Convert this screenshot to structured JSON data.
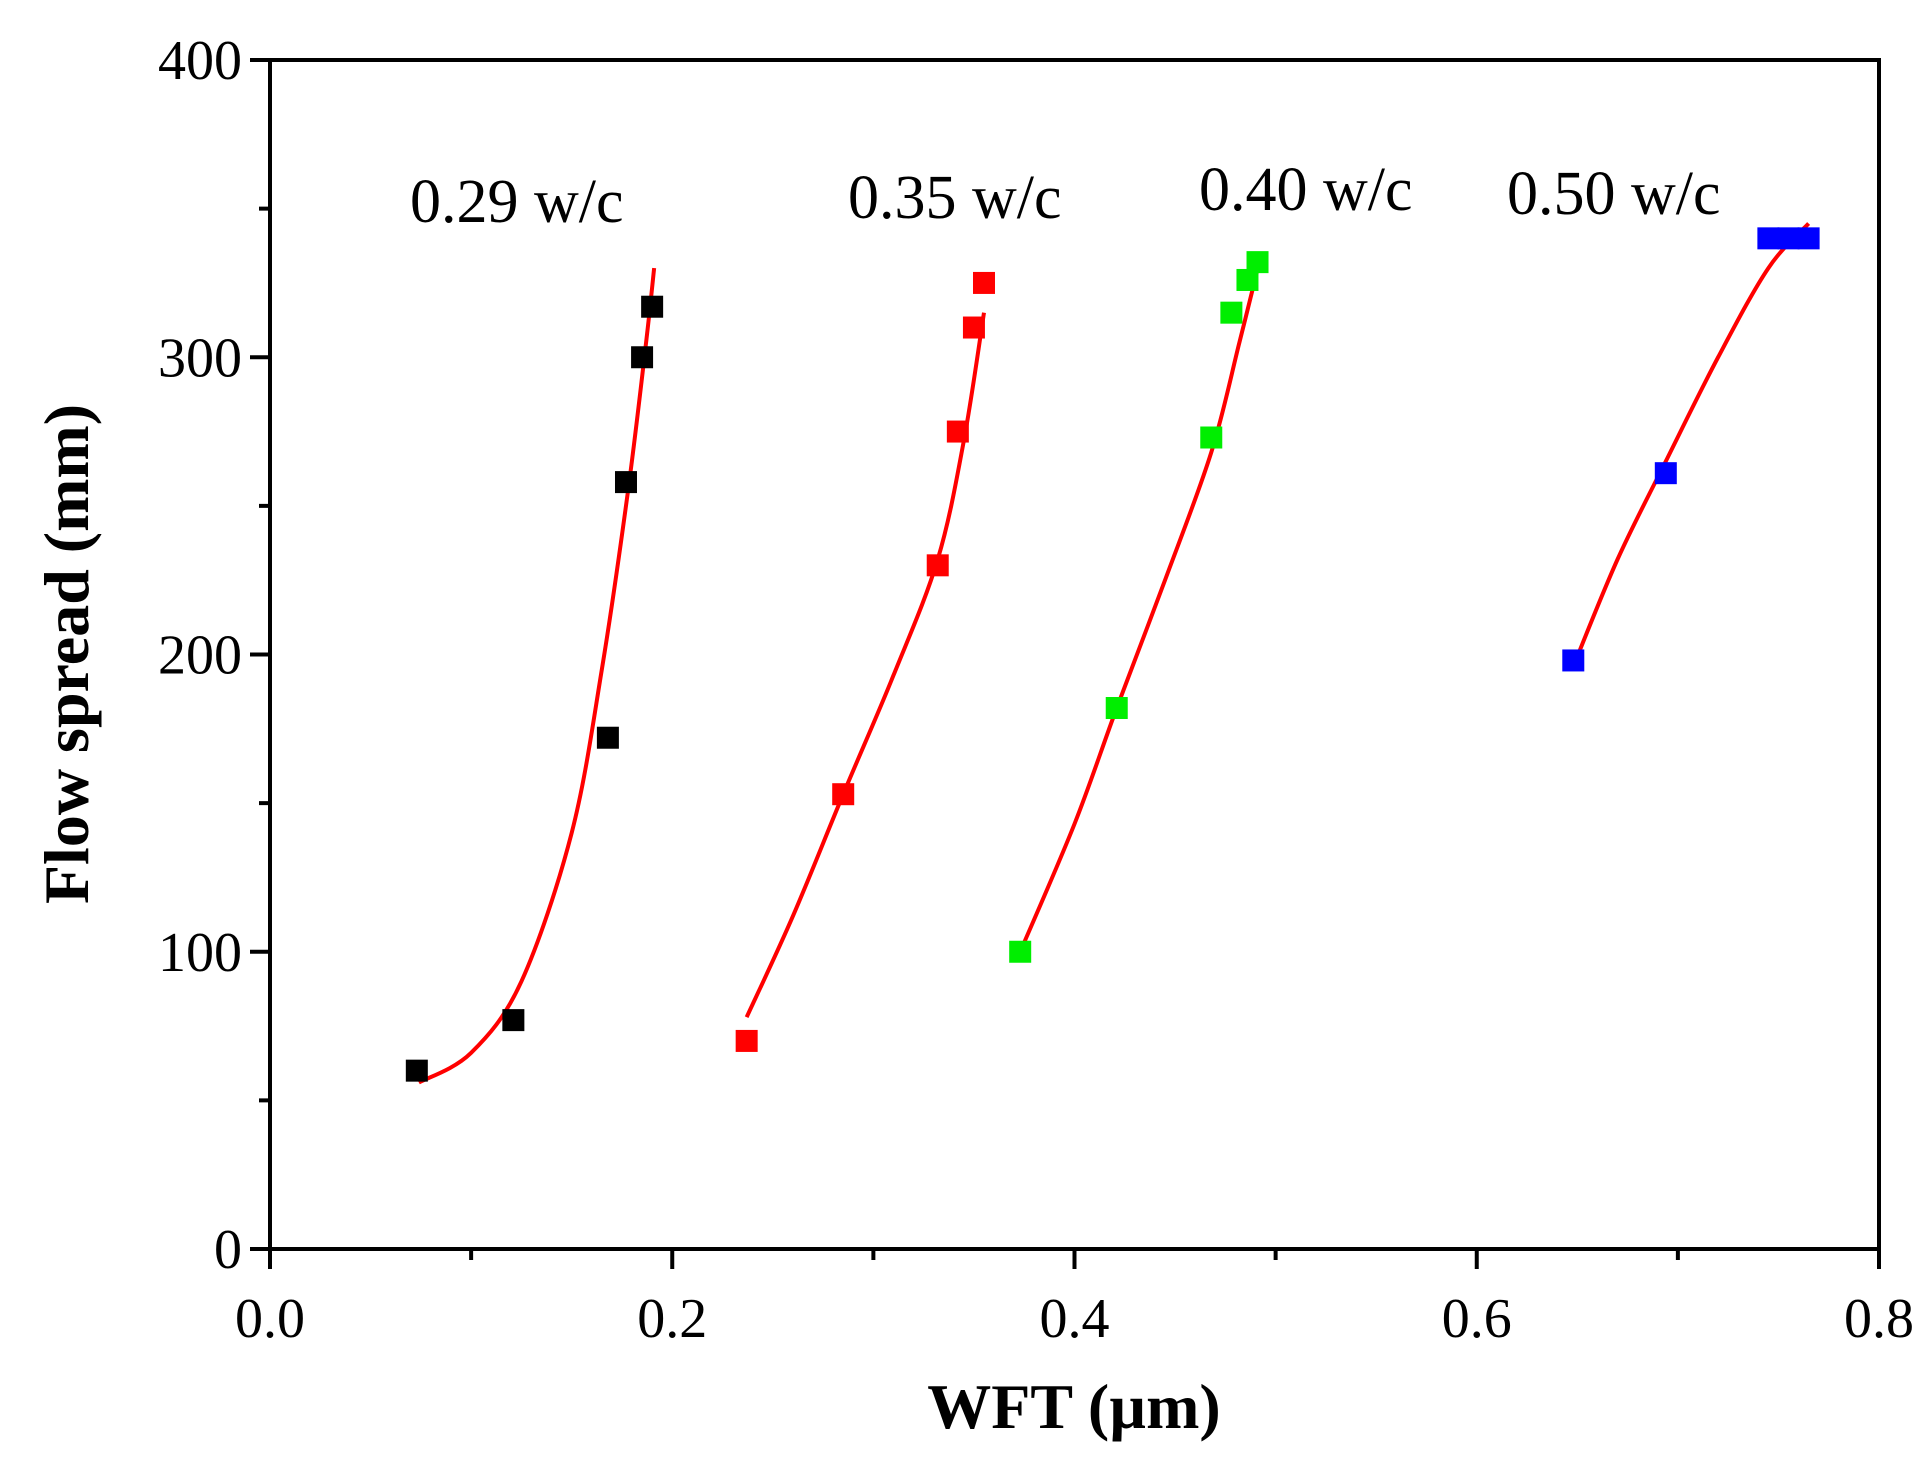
{
  "chart_data": {
    "type": "scatter",
    "title": "",
    "xlabel": "WFT (µm)",
    "ylabel": "Flow spread (mm)",
    "xlim": [
      0.0,
      0.8
    ],
    "ylim": [
      0,
      400
    ],
    "x_ticks": [
      "0.0",
      "0.2",
      "0.4",
      "0.6",
      "0.8"
    ],
    "x_tick_values": [
      0.0,
      0.2,
      0.4,
      0.6,
      0.8
    ],
    "y_ticks": [
      "0",
      "100",
      "200",
      "300",
      "400"
    ],
    "y_tick_values": [
      0,
      100,
      200,
      300,
      400
    ],
    "grid": false,
    "fit_color": "#ff0000",
    "series": [
      {
        "name": "0.29 w/c",
        "marker_color": "#000000",
        "x": [
          0.073,
          0.121,
          0.168,
          0.177,
          0.185,
          0.19
        ],
        "y": [
          60,
          77,
          172,
          258,
          300,
          317
        ],
        "fit_x": [
          0.074,
          0.1,
          0.125,
          0.15,
          0.165,
          0.178,
          0.187,
          0.191
        ],
        "fit_y": [
          56,
          66,
          90,
          140,
          195,
          255,
          305,
          330
        ]
      },
      {
        "name": "0.35 w/c",
        "marker_color": "#ff0000",
        "x": [
          0.237,
          0.285,
          0.332,
          0.342,
          0.35,
          0.355
        ],
        "y": [
          70,
          153,
          230,
          275,
          310,
          325
        ],
        "fit_x": [
          0.237,
          0.26,
          0.285,
          0.31,
          0.332,
          0.345,
          0.355
        ],
        "fit_y": [
          78,
          112,
          153,
          193,
          232,
          272,
          315
        ]
      },
      {
        "name": "0.40 w/c",
        "marker_color": "#00ee00",
        "x": [
          0.373,
          0.421,
          0.468,
          0.478,
          0.486,
          0.491
        ],
        "y": [
          100,
          182,
          273,
          315,
          326,
          332
        ],
        "fit_x": [
          0.373,
          0.4,
          0.421,
          0.445,
          0.468,
          0.482,
          0.493
        ],
        "fit_y": [
          100,
          143,
          182,
          225,
          268,
          305,
          335
        ]
      },
      {
        "name": "0.50 w/c",
        "marker_color": "#0000ff",
        "x": [
          0.648,
          0.694,
          0.745,
          0.755,
          0.765
        ],
        "y": [
          198,
          261,
          340,
          340,
          340
        ],
        "fit_x": [
          0.648,
          0.67,
          0.694,
          0.72,
          0.745,
          0.765
        ],
        "fit_y": [
          196,
          232,
          265,
          300,
          330,
          345
        ]
      }
    ]
  }
}
